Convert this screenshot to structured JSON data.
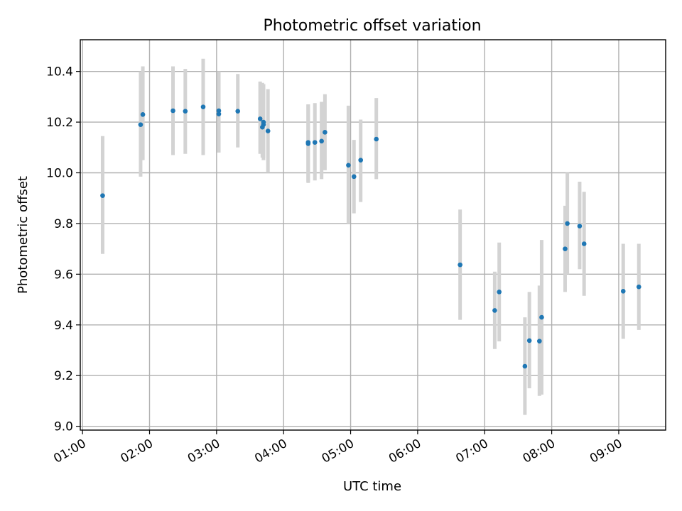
{
  "chart_data": {
    "type": "scatter",
    "title": "Photometric offset variation",
    "xlabel": "UTC time",
    "ylabel": "Photometric offset",
    "x_is_time": true,
    "xlim": [
      "00:58",
      "09:42"
    ],
    "ylim": [
      8.985,
      10.525
    ],
    "xticks": [
      "01:00",
      "02:00",
      "03:00",
      "04:00",
      "05:00",
      "06:00",
      "07:00",
      "08:00",
      "09:00"
    ],
    "yticks": [
      "9.0",
      "9.2",
      "9.4",
      "9.6",
      "9.8",
      "10.0",
      "10.2",
      "10.4"
    ],
    "grid": true,
    "colors": {
      "point": "#1f77b4",
      "error_bar": "#d3d3d3",
      "grid": "#b0b0b0"
    },
    "points": [
      {
        "x": "01:18",
        "y": 9.91,
        "lo": 9.68,
        "hi": 10.145
      },
      {
        "x": "01:52",
        "y": 10.19,
        "lo": 9.985,
        "hi": 10.4
      },
      {
        "x": "01:54",
        "y": 10.23,
        "lo": 10.05,
        "hi": 10.42
      },
      {
        "x": "02:21",
        "y": 10.245,
        "lo": 10.07,
        "hi": 10.42
      },
      {
        "x": "02:32",
        "y": 10.243,
        "lo": 10.075,
        "hi": 10.41
      },
      {
        "x": "02:48",
        "y": 10.26,
        "lo": 10.07,
        "hi": 10.45
      },
      {
        "x": "03:02",
        "y": 10.245,
        "lo": 10.08,
        "hi": 10.4
      },
      {
        "x": "03:02",
        "y": 10.232,
        "lo": 10.08,
        "hi": 10.4
      },
      {
        "x": "03:19",
        "y": 10.243,
        "lo": 10.1,
        "hi": 10.39
      },
      {
        "x": "03:39",
        "y": 10.213,
        "lo": 10.075,
        "hi": 10.36
      },
      {
        "x": "03:41",
        "y": 10.18,
        "lo": 10.06,
        "hi": 10.355
      },
      {
        "x": "03:42",
        "y": 10.19,
        "lo": 10.05,
        "hi": 10.35
      },
      {
        "x": "03:42",
        "y": 10.2,
        "lo": 10.06,
        "hi": 10.35
      },
      {
        "x": "03:46",
        "y": 10.165,
        "lo": 10.0,
        "hi": 10.33
      },
      {
        "x": "04:22",
        "y": 10.115,
        "lo": 9.96,
        "hi": 10.27
      },
      {
        "x": "04:22",
        "y": 10.12,
        "lo": 9.965,
        "hi": 10.27
      },
      {
        "x": "04:28",
        "y": 10.12,
        "lo": 9.97,
        "hi": 10.275
      },
      {
        "x": "04:34",
        "y": 10.125,
        "lo": 9.975,
        "hi": 10.28
      },
      {
        "x": "04:37",
        "y": 10.16,
        "lo": 10.01,
        "hi": 10.31
      },
      {
        "x": "04:58",
        "y": 10.03,
        "lo": 9.8,
        "hi": 10.265
      },
      {
        "x": "05:03",
        "y": 9.985,
        "lo": 9.84,
        "hi": 10.13
      },
      {
        "x": "05:09",
        "y": 10.05,
        "lo": 9.885,
        "hi": 10.21
      },
      {
        "x": "05:23",
        "y": 10.133,
        "lo": 9.975,
        "hi": 10.295
      },
      {
        "x": "06:38",
        "y": 9.637,
        "lo": 9.42,
        "hi": 9.855
      },
      {
        "x": "07:09",
        "y": 9.457,
        "lo": 9.305,
        "hi": 9.61
      },
      {
        "x": "07:13",
        "y": 9.53,
        "lo": 9.335,
        "hi": 9.725
      },
      {
        "x": "07:36",
        "y": 9.237,
        "lo": 9.045,
        "hi": 9.43
      },
      {
        "x": "07:40",
        "y": 9.338,
        "lo": 9.15,
        "hi": 9.53
      },
      {
        "x": "07:49",
        "y": 9.336,
        "lo": 9.12,
        "hi": 9.555
      },
      {
        "x": "07:51",
        "y": 9.43,
        "lo": 9.125,
        "hi": 9.735
      },
      {
        "x": "08:12",
        "y": 9.7,
        "lo": 9.53,
        "hi": 9.87
      },
      {
        "x": "08:14",
        "y": 9.8,
        "lo": 9.6,
        "hi": 10.0
      },
      {
        "x": "08:25",
        "y": 9.79,
        "lo": 9.62,
        "hi": 9.965
      },
      {
        "x": "08:29",
        "y": 9.72,
        "lo": 9.515,
        "hi": 9.925
      },
      {
        "x": "09:04",
        "y": 9.533,
        "lo": 9.345,
        "hi": 9.72
      },
      {
        "x": "09:18",
        "y": 9.55,
        "lo": 9.38,
        "hi": 9.72
      }
    ]
  }
}
